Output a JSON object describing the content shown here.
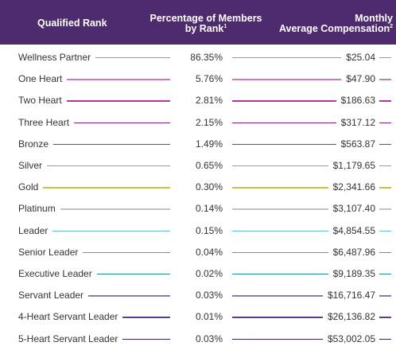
{
  "header": {
    "rank_label": "Qualified Rank",
    "pct_label_line1": "Percentage of Members",
    "pct_label_line2": "by Rank",
    "pct_footnote": "1",
    "comp_label_line1": "Monthly",
    "comp_label_line2": "Average Compensation",
    "comp_footnote": "2",
    "background_color": "#4e2a6f"
  },
  "rows": [
    {
      "rank": "Wellness Partner",
      "pct": "86.35%",
      "comp": "$25.04",
      "line_color": "#9a9a9a"
    },
    {
      "rank": "One Heart",
      "pct": "5.76%",
      "comp": "$47.90",
      "line_color": "#c77bc5"
    },
    {
      "rank": "Two Heart",
      "pct": "2.81%",
      "comp": "$186.63",
      "line_color": "#b4399f"
    },
    {
      "rank": "Three Heart",
      "pct": "2.15%",
      "comp": "$317.12",
      "line_color": "#8e1f7e"
    },
    {
      "rank": "Bronze",
      "pct": "1.49%",
      "comp": "$563.87",
      "line_color": "#6b5a1e"
    },
    {
      "rank": "Silver",
      "pct": "0.65%",
      "comp": "$1,179.65",
      "line_color": "#9a9a9a"
    },
    {
      "rank": "Gold",
      "pct": "0.30%",
      "comp": "$2,341.66",
      "line_color": "#c9c34a"
    },
    {
      "rank": "Platinum",
      "pct": "0.14%",
      "comp": "$3,107.40",
      "line_color": "#c0c4c8"
    },
    {
      "rank": "Leader",
      "pct": "0.15%",
      "comp": "$4,854.55",
      "line_color": "#62c3cf"
    },
    {
      "rank": "Senior Leader",
      "pct": "0.04%",
      "comp": "$6,487.96",
      "line_color": "#3aaab9"
    },
    {
      "rank": "Executive Leader",
      "pct": "0.02%",
      "comp": "$9,189.35",
      "line_color": "#1d8f9e"
    },
    {
      "rank": "Servant Leader",
      "pct": "0.03%",
      "comp": "$16,716.47",
      "line_color": "#8a7ca8"
    },
    {
      "rank": "4-Heart Servant Leader",
      "pct": "0.01%",
      "comp": "$26,136.82",
      "line_color": "#5a3f86"
    },
    {
      "rank": "5-Heart Servant Leader",
      "pct": "0.03%",
      "comp": "$53,002.05",
      "line_color": "#3a2166"
    }
  ]
}
